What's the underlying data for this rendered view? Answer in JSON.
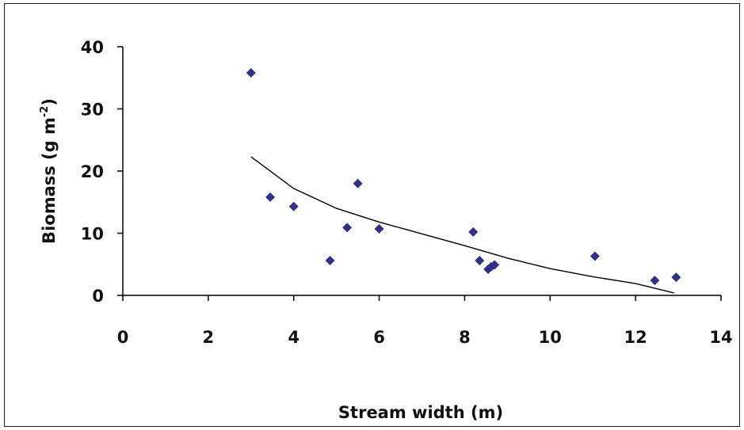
{
  "chart_data": {
    "type": "scatter",
    "title": "",
    "xlabel": "Stream width (m)",
    "ylabel": {
      "text": "Biomass (g m",
      "superscript": "-2",
      "suffix": ")"
    },
    "xlim": [
      0,
      14
    ],
    "ylim": [
      0,
      40
    ],
    "x_ticks": [
      0,
      2,
      4,
      6,
      8,
      10,
      12,
      14
    ],
    "y_ticks": [
      0,
      10,
      20,
      30,
      40
    ],
    "grid": false,
    "legend": "none",
    "marker_color": "#2e3192",
    "series": [
      {
        "marker": "diamond",
        "points": [
          {
            "x": 3.0,
            "y": 35.8
          },
          {
            "x": 3.45,
            "y": 15.8
          },
          {
            "x": 4.0,
            "y": 14.3
          },
          {
            "x": 4.85,
            "y": 5.6
          },
          {
            "x": 5.25,
            "y": 10.9
          },
          {
            "x": 5.5,
            "y": 18.0
          },
          {
            "x": 6.0,
            "y": 10.7
          },
          {
            "x": 8.2,
            "y": 10.2
          },
          {
            "x": 8.35,
            "y": 5.6
          },
          {
            "x": 8.55,
            "y": 4.2
          },
          {
            "x": 8.62,
            "y": 4.6
          },
          {
            "x": 8.7,
            "y": 4.9
          },
          {
            "x": 11.05,
            "y": 6.3
          },
          {
            "x": 12.45,
            "y": 2.4
          },
          {
            "x": 12.95,
            "y": 2.9
          }
        ]
      }
    ],
    "trendline": {
      "type": "logarithmic",
      "color": "#000000",
      "points": [
        {
          "x": 3.0,
          "y": 22.3
        },
        {
          "x": 4.0,
          "y": 17.2
        },
        {
          "x": 5.0,
          "y": 14.0
        },
        {
          "x": 6.0,
          "y": 11.8
        },
        {
          "x": 7.0,
          "y": 9.9
        },
        {
          "x": 8.0,
          "y": 8.0
        },
        {
          "x": 9.0,
          "y": 6.0
        },
        {
          "x": 10.0,
          "y": 4.3
        },
        {
          "x": 11.0,
          "y": 3.0
        },
        {
          "x": 12.0,
          "y": 1.9
        },
        {
          "x": 12.9,
          "y": 0.4
        }
      ]
    }
  }
}
